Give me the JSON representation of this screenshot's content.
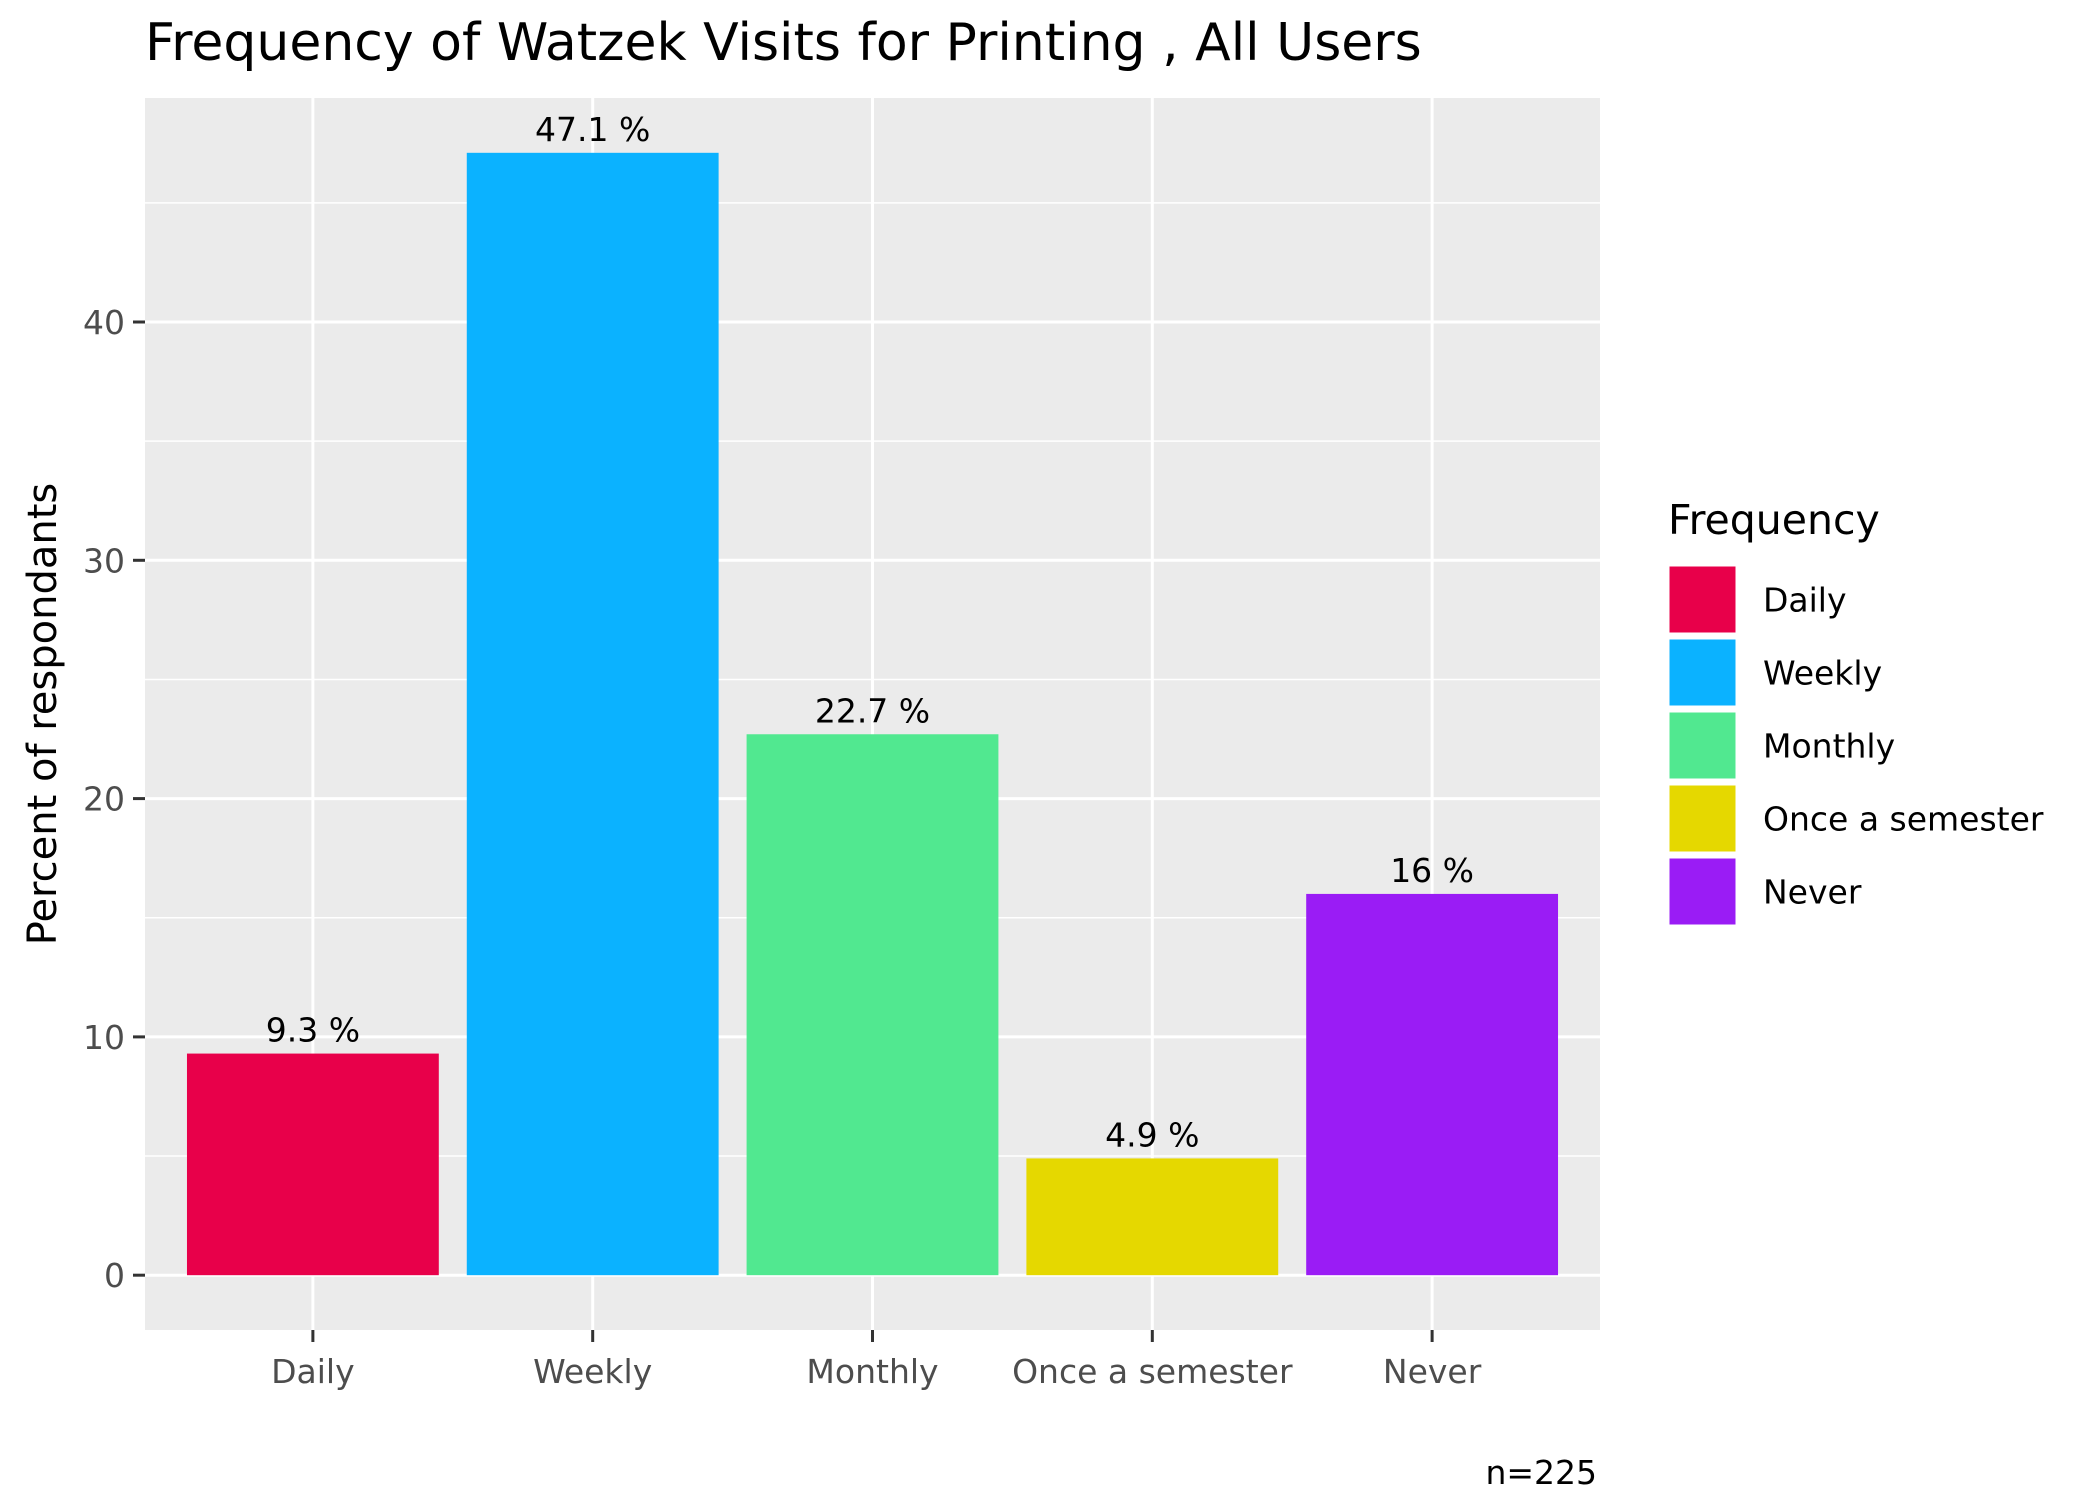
{
  "chart_data": {
    "type": "bar",
    "title": "Frequency of Watzek Visits for Printing , All Users",
    "xlabel": "",
    "ylabel": "Percent of respondants",
    "categories": [
      "Daily",
      "Weekly",
      "Monthly",
      "Once a semester",
      "Never"
    ],
    "values": [
      9.3,
      47.1,
      22.7,
      4.9,
      16
    ],
    "data_labels": [
      "9.3 %",
      "47.1 %",
      "22.7 %",
      "4.9 %",
      "16 %"
    ],
    "colors": [
      "#E8004A",
      "#0BB2FF",
      "#51E890",
      "#E5D800",
      "#9A1CF5"
    ],
    "ylim": [
      -2.3,
      49.4
    ],
    "y_ticks": [
      0,
      10,
      20,
      30,
      40
    ],
    "y_tick_labels": [
      "0",
      "10",
      "20",
      "30",
      "40"
    ],
    "grid": true,
    "legend": {
      "title": "Frequency",
      "position": "right",
      "entries": [
        "Daily",
        "Weekly",
        "Monthly",
        "Once a semester",
        "Never"
      ]
    },
    "caption": "n=225"
  },
  "theme": {
    "panel_background": "#EBEBEB",
    "grid_color": "#FFFFFF",
    "tick_color": "#333333"
  }
}
